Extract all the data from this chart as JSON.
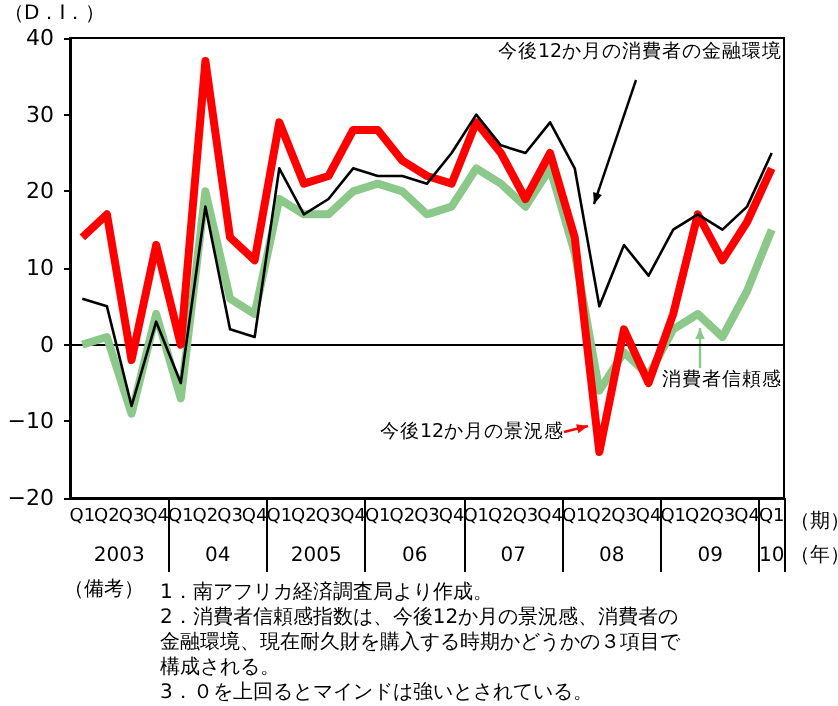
{
  "chart_data": {
    "type": "line",
    "ylabel": "（D．I．）",
    "xlabel": "（期）",
    "categories": [
      "Q1",
      "Q2",
      "Q3",
      "Q4",
      "Q1",
      "Q2",
      "Q3",
      "Q4",
      "Q1",
      "Q2",
      "Q3",
      "Q4",
      "Q1",
      "Q2",
      "Q3",
      "Q4",
      "Q1",
      "Q2",
      "Q3",
      "Q4",
      "Q1",
      "Q2",
      "Q3",
      "Q4",
      "Q1",
      "Q2",
      "Q3",
      "Q4",
      "Q1"
    ],
    "series": [
      {
        "name": "今後12か月の消費者の金融環境",
        "color": "#000000",
        "values": [
          6,
          5,
          -8,
          3,
          -5,
          18,
          2,
          1,
          23,
          17,
          19,
          23,
          22,
          22,
          21,
          25,
          30,
          26,
          25,
          29,
          23,
          5,
          13,
          9,
          15,
          17,
          15,
          18,
          25
        ]
      },
      {
        "name": "今後12か月の景況感",
        "color": "#ff0000",
        "values": [
          14,
          17,
          -2,
          13,
          0,
          37,
          14,
          11,
          29,
          21,
          22,
          28,
          28,
          24,
          22,
          21,
          29,
          25,
          19,
          25,
          14,
          -14,
          2,
          -5,
          4,
          17,
          11,
          16,
          23
        ]
      },
      {
        "name": "消費者信頼感",
        "color": "#8cc88a",
        "values": [
          0,
          1,
          -9,
          4,
          -7,
          20,
          6,
          4,
          19,
          17,
          17,
          20,
          21,
          20,
          17,
          18,
          23,
          21,
          18,
          23,
          12,
          -6,
          -1,
          -4,
          2,
          4,
          1,
          7,
          15
        ]
      }
    ],
    "ylim": [
      -20,
      40
    ],
    "yticks": [
      {
        "value": -20,
        "label": "−20"
      },
      {
        "value": -10,
        "label": "−10"
      },
      0,
      10,
      20,
      30,
      40
    ],
    "ref_lines": [
      {
        "axis": "y",
        "value": 0
      }
    ],
    "annotations": [
      "2003",
      "04",
      "2005",
      "06",
      "07",
      "08",
      "09",
      "10",
      "（年）",
      "（備考）",
      "1．南アフリカ経済調査局より作成。",
      "2．消費者信頼感指数は、今後12か月の景況感、消費者の金融環境、現在耐久財を購入する時期かどうかの３項目で構成される。",
      "3．０を上回るとマインドは強いとされている。"
    ]
  }
}
